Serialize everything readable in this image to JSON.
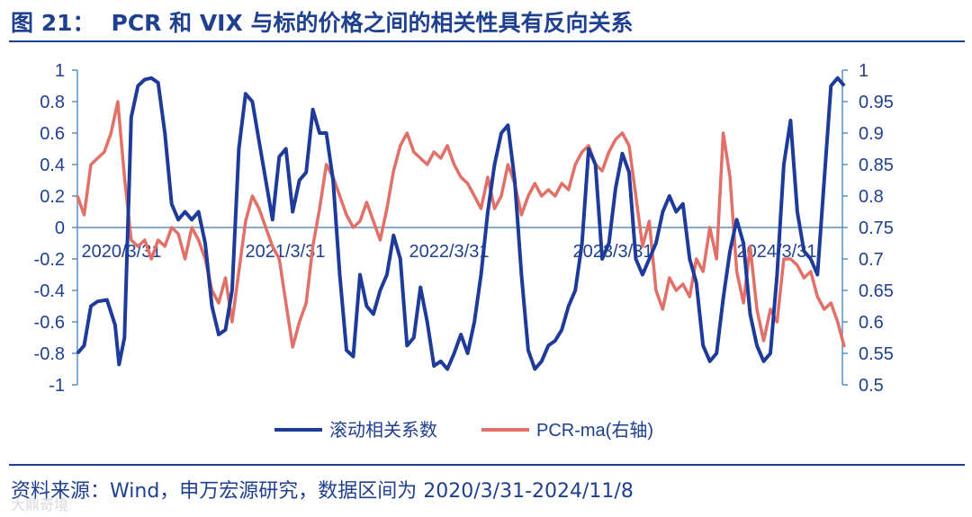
{
  "header": {
    "figure_number": "图 21：",
    "title": "PCR 和 VIX 与标的价格之间的相关性具有反向关系"
  },
  "footer": {
    "source": "资料来源：Wind，申万宏源研究，数据区间为 2020/3/31-2024/11/8",
    "watermark": "大鼎奇境"
  },
  "colors": {
    "title": "#1f3f8f",
    "series_corr": "#1f3b9a",
    "series_pcr": "#e07068",
    "axis": "#5b8fc7"
  },
  "chart_data": {
    "type": "line",
    "x_tick_labels": [
      "2020/3/31",
      "2021/3/31",
      "2022/3/31",
      "2023/3/31",
      "2024/3/31"
    ],
    "y_left": {
      "ticks": [
        -1,
        -0.8,
        -0.6,
        -0.4,
        -0.2,
        0,
        0.2,
        0.4,
        0.6,
        0.8,
        1
      ],
      "range": [
        -1,
        1
      ]
    },
    "y_right": {
      "ticks": [
        0.5,
        0.55,
        0.6,
        0.65,
        0.7,
        0.75,
        0.8,
        0.85,
        0.9,
        0.95,
        1
      ],
      "range": [
        0.5,
        1
      ]
    },
    "x_range": [
      0,
      56
    ],
    "legend_position": "bottom",
    "series": [
      {
        "name": "滚动相关系数",
        "axis": "left",
        "points": [
          [
            0,
            -0.8
          ],
          [
            0.5,
            -0.75
          ],
          [
            1,
            -0.5
          ],
          [
            1.5,
            -0.47
          ],
          [
            2.2,
            -0.46
          ],
          [
            2.8,
            -0.62
          ],
          [
            3.1,
            -0.87
          ],
          [
            3.5,
            -0.7
          ],
          [
            4,
            0.7
          ],
          [
            4.5,
            0.9
          ],
          [
            5,
            0.94
          ],
          [
            5.5,
            0.95
          ],
          [
            6,
            0.92
          ],
          [
            6.5,
            0.6
          ],
          [
            7,
            0.15
          ],
          [
            7.5,
            0.05
          ],
          [
            8,
            0.1
          ],
          [
            8.5,
            0.05
          ],
          [
            9,
            0.1
          ],
          [
            9.5,
            -0.1
          ],
          [
            10,
            -0.5
          ],
          [
            10.5,
            -0.68
          ],
          [
            11,
            -0.65
          ],
          [
            11.5,
            -0.4
          ],
          [
            12,
            0.5
          ],
          [
            12.5,
            0.85
          ],
          [
            13,
            0.8
          ],
          [
            13.5,
            0.55
          ],
          [
            14,
            0.3
          ],
          [
            14.5,
            0.05
          ],
          [
            15,
            0.45
          ],
          [
            15.5,
            0.5
          ],
          [
            16,
            0.1
          ],
          [
            16.5,
            0.3
          ],
          [
            17,
            0.35
          ],
          [
            17.5,
            0.75
          ],
          [
            18,
            0.6
          ],
          [
            18.5,
            0.6
          ],
          [
            19,
            0.3
          ],
          [
            19.5,
            -0.3
          ],
          [
            20,
            -0.78
          ],
          [
            20.5,
            -0.82
          ],
          [
            21,
            -0.3
          ],
          [
            21.5,
            -0.5
          ],
          [
            22,
            -0.55
          ],
          [
            22.5,
            -0.4
          ],
          [
            23,
            -0.3
          ],
          [
            23.5,
            -0.05
          ],
          [
            24,
            -0.2
          ],
          [
            24.5,
            -0.75
          ],
          [
            25,
            -0.7
          ],
          [
            25.5,
            -0.38
          ],
          [
            26,
            -0.6
          ],
          [
            26.5,
            -0.88
          ],
          [
            27,
            -0.85
          ],
          [
            27.5,
            -0.9
          ],
          [
            28,
            -0.8
          ],
          [
            28.5,
            -0.68
          ],
          [
            29,
            -0.8
          ],
          [
            29.5,
            -0.6
          ],
          [
            30,
            -0.3
          ],
          [
            30.5,
            0.1
          ],
          [
            31,
            0.4
          ],
          [
            31.5,
            0.6
          ],
          [
            32,
            0.65
          ],
          [
            32.5,
            0.3
          ],
          [
            33,
            -0.3
          ],
          [
            33.5,
            -0.78
          ],
          [
            34,
            -0.9
          ],
          [
            34.5,
            -0.85
          ],
          [
            35,
            -0.75
          ],
          [
            35.5,
            -0.72
          ],
          [
            36,
            -0.65
          ],
          [
            36.5,
            -0.5
          ],
          [
            37,
            -0.4
          ],
          [
            37.5,
            -0.1
          ],
          [
            38,
            0.5
          ],
          [
            38.5,
            0.4
          ],
          [
            39,
            -0.2
          ],
          [
            39.5,
            -0.1
          ],
          [
            40,
            0.25
          ],
          [
            40.5,
            0.47
          ],
          [
            41,
            0.35
          ],
          [
            41.5,
            -0.2
          ],
          [
            42,
            -0.3
          ],
          [
            42.5,
            -0.2
          ],
          [
            43,
            -0.1
          ],
          [
            43.5,
            0.1
          ],
          [
            44,
            0.2
          ],
          [
            44.5,
            0.1
          ],
          [
            45,
            0.15
          ],
          [
            45.5,
            -0.2
          ],
          [
            46,
            -0.35
          ],
          [
            46.5,
            -0.75
          ],
          [
            47,
            -0.85
          ],
          [
            47.5,
            -0.8
          ],
          [
            48,
            -0.45
          ],
          [
            48.5,
            -0.15
          ],
          [
            49,
            0.05
          ],
          [
            49.5,
            -0.1
          ],
          [
            50,
            -0.55
          ],
          [
            50.5,
            -0.75
          ],
          [
            51,
            -0.85
          ],
          [
            51.5,
            -0.8
          ],
          [
            52,
            -0.3
          ],
          [
            52.5,
            0.4
          ],
          [
            53,
            0.68
          ],
          [
            53.5,
            0.1
          ],
          [
            54,
            -0.15
          ],
          [
            54.5,
            -0.2
          ],
          [
            55,
            -0.3
          ],
          [
            55.5,
            0.3
          ],
          [
            56,
            0.9
          ],
          [
            56.5,
            0.95
          ],
          [
            57,
            0.9
          ]
        ]
      },
      {
        "name": "PCR-ma(右轴)",
        "axis": "right",
        "points": [
          [
            0,
            0.8
          ],
          [
            0.5,
            0.77
          ],
          [
            1,
            0.85
          ],
          [
            1.5,
            0.86
          ],
          [
            2,
            0.87
          ],
          [
            2.5,
            0.9
          ],
          [
            3,
            0.95
          ],
          [
            3.5,
            0.83
          ],
          [
            4,
            0.73
          ],
          [
            4.5,
            0.72
          ],
          [
            5,
            0.73
          ],
          [
            5.5,
            0.7
          ],
          [
            6,
            0.73
          ],
          [
            6.5,
            0.72
          ],
          [
            7,
            0.75
          ],
          [
            7.5,
            0.74
          ],
          [
            8,
            0.7
          ],
          [
            8.5,
            0.75
          ],
          [
            9,
            0.73
          ],
          [
            9.5,
            0.7
          ],
          [
            10,
            0.65
          ],
          [
            10.5,
            0.63
          ],
          [
            11,
            0.67
          ],
          [
            11.5,
            0.6
          ],
          [
            12,
            0.68
          ],
          [
            12.5,
            0.76
          ],
          [
            13,
            0.8
          ],
          [
            13.5,
            0.78
          ],
          [
            14,
            0.75
          ],
          [
            14.5,
            0.72
          ],
          [
            15,
            0.7
          ],
          [
            15.5,
            0.63
          ],
          [
            16,
            0.56
          ],
          [
            16.5,
            0.6
          ],
          [
            17,
            0.63
          ],
          [
            17.5,
            0.72
          ],
          [
            18,
            0.78
          ],
          [
            18.5,
            0.85
          ],
          [
            19,
            0.83
          ],
          [
            19.5,
            0.8
          ],
          [
            20,
            0.77
          ],
          [
            20.5,
            0.75
          ],
          [
            21,
            0.76
          ],
          [
            21.5,
            0.79
          ],
          [
            22,
            0.76
          ],
          [
            22.5,
            0.73
          ],
          [
            23,
            0.78
          ],
          [
            23.5,
            0.84
          ],
          [
            24,
            0.88
          ],
          [
            24.5,
            0.9
          ],
          [
            25,
            0.87
          ],
          [
            25.5,
            0.86
          ],
          [
            26,
            0.85
          ],
          [
            26.5,
            0.87
          ],
          [
            27,
            0.86
          ],
          [
            27.5,
            0.88
          ],
          [
            28,
            0.85
          ],
          [
            28.5,
            0.83
          ],
          [
            29,
            0.82
          ],
          [
            29.5,
            0.8
          ],
          [
            30,
            0.78
          ],
          [
            30.5,
            0.83
          ],
          [
            31,
            0.78
          ],
          [
            31.5,
            0.8
          ],
          [
            32,
            0.85
          ],
          [
            32.5,
            0.82
          ],
          [
            33,
            0.77
          ],
          [
            33.5,
            0.8
          ],
          [
            34,
            0.82
          ],
          [
            34.5,
            0.8
          ],
          [
            35,
            0.81
          ],
          [
            35.5,
            0.8
          ],
          [
            36,
            0.82
          ],
          [
            36.5,
            0.81
          ],
          [
            37,
            0.85
          ],
          [
            37.5,
            0.87
          ],
          [
            38,
            0.88
          ],
          [
            38.5,
            0.85
          ],
          [
            39,
            0.84
          ],
          [
            39.5,
            0.87
          ],
          [
            40,
            0.89
          ],
          [
            40.5,
            0.9
          ],
          [
            41,
            0.88
          ],
          [
            41.5,
            0.8
          ],
          [
            42,
            0.72
          ],
          [
            42.5,
            0.76
          ],
          [
            43,
            0.65
          ],
          [
            43.5,
            0.62
          ],
          [
            44,
            0.67
          ],
          [
            44.5,
            0.65
          ],
          [
            45,
            0.66
          ],
          [
            45.5,
            0.64
          ],
          [
            46,
            0.7
          ],
          [
            46.5,
            0.68
          ],
          [
            47,
            0.75
          ],
          [
            47.5,
            0.7
          ],
          [
            48,
            0.9
          ],
          [
            48.5,
            0.83
          ],
          [
            49,
            0.68
          ],
          [
            49.5,
            0.63
          ],
          [
            50,
            0.72
          ],
          [
            50.5,
            0.62
          ],
          [
            51,
            0.57
          ],
          [
            51.5,
            0.62
          ],
          [
            52,
            0.6
          ],
          [
            52.5,
            0.7
          ],
          [
            53,
            0.7
          ],
          [
            53.5,
            0.69
          ],
          [
            54,
            0.67
          ],
          [
            54.5,
            0.68
          ],
          [
            55,
            0.64
          ],
          [
            55.5,
            0.62
          ],
          [
            56,
            0.63
          ],
          [
            56.5,
            0.6
          ],
          [
            57,
            0.56
          ]
        ]
      }
    ]
  }
}
